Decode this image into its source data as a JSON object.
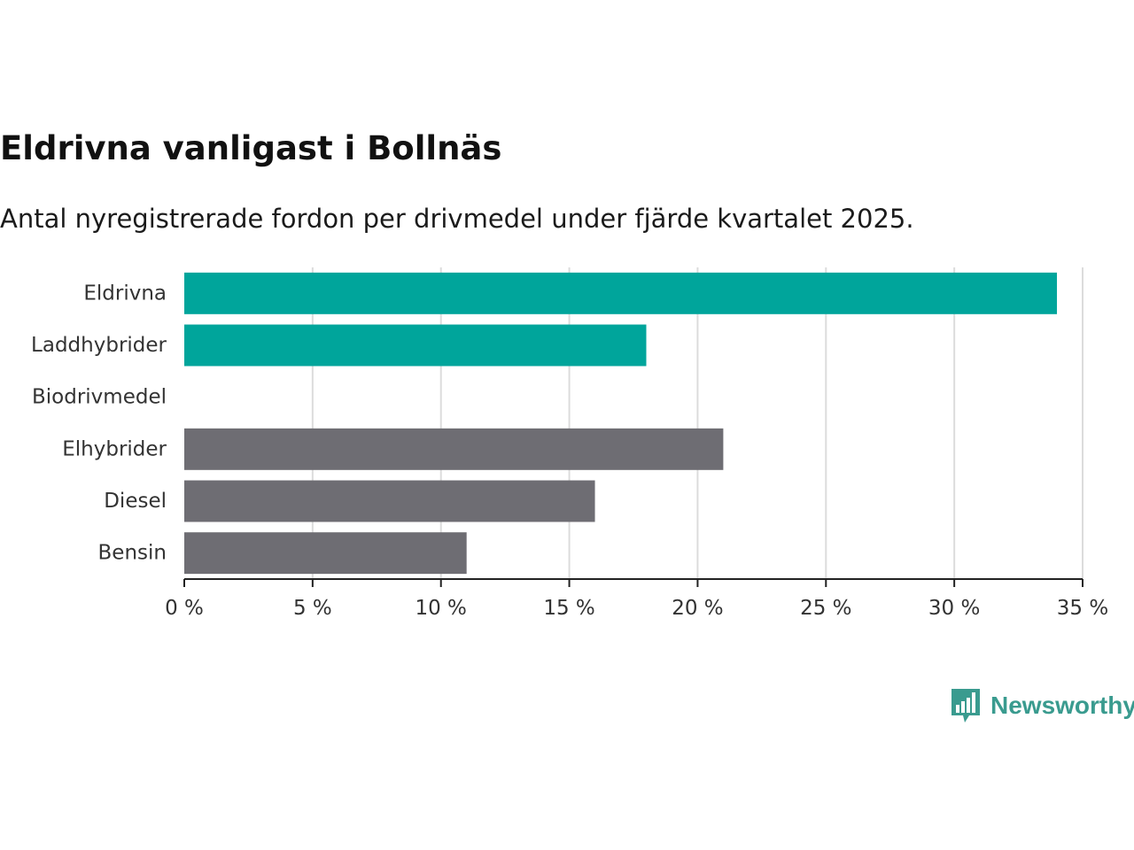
{
  "chart_data": {
    "type": "bar",
    "orientation": "horizontal",
    "title": "Eldrivna vanligast i Bollnäs",
    "subtitle": "Antal nyregistrerade fordon per drivmedel under fjärde kvartalet 2025.",
    "categories": [
      "Eldrivna",
      "Laddhybrider",
      "Biodrivmedel",
      "Elhybrider",
      "Diesel",
      "Bensin"
    ],
    "values": [
      34,
      18,
      0,
      21,
      16,
      11
    ],
    "bar_colors": [
      "#00a59b",
      "#00a59b",
      "#00a59b",
      "#6e6d73",
      "#6e6d73",
      "#6e6d73"
    ],
    "xlim": [
      0,
      35
    ],
    "xticks": [
      0,
      5,
      10,
      15,
      20,
      25,
      30,
      35
    ],
    "xtick_labels": [
      "0 %",
      "5 %",
      "10 %",
      "15 %",
      "20 %",
      "25 %",
      "30 %",
      "35 %"
    ],
    "xlabel": "",
    "ylabel": "",
    "grid": true
  },
  "logo": {
    "text": "Newsworthy",
    "icon": "bar-chart-speech-bubble-icon",
    "color": "#3a9b8f"
  }
}
